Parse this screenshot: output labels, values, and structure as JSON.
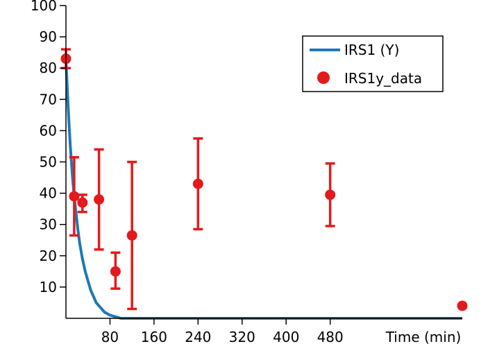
{
  "chart_data": {
    "type": "line",
    "xlabel": "Time (min)",
    "ylabel": "",
    "xlim": [
      0,
      720
    ],
    "ylim": [
      0,
      100
    ],
    "x_ticks": [
      80,
      160,
      240,
      320,
      400,
      480
    ],
    "y_ticks": [
      10,
      20,
      30,
      40,
      50,
      60,
      70,
      80,
      90,
      100
    ],
    "grid": false,
    "legend_position": "top-right",
    "series": [
      {
        "name": "IRS1 (Y)",
        "kind": "line",
        "color": "#1f77b4",
        "x": [
          0,
          2,
          5,
          8,
          10,
          12,
          15,
          18,
          20,
          22,
          25,
          28,
          30,
          35,
          40,
          45,
          50,
          55,
          60,
          70,
          80,
          90,
          100,
          720
        ],
        "y": [
          83,
          75,
          64,
          55,
          50,
          45,
          39,
          34,
          31,
          28,
          24,
          21,
          19,
          15,
          12,
          9,
          7,
          5,
          4,
          2,
          1,
          0.5,
          0,
          0
        ]
      },
      {
        "name": "IRS1y_data",
        "kind": "scatter_errorbar",
        "color": "#e31a1c",
        "x": [
          0,
          15,
          30,
          60,
          90,
          120,
          240,
          480,
          720
        ],
        "y": [
          83,
          39,
          37,
          38,
          15,
          26.5,
          43,
          39.5,
          4
        ],
        "err_low": [
          80,
          26.5,
          34,
          22,
          9.5,
          3,
          28.5,
          29.5,
          4
        ],
        "err_high": [
          86,
          51.5,
          39.5,
          54,
          21,
          50,
          57.5,
          49.5,
          4
        ]
      }
    ]
  }
}
